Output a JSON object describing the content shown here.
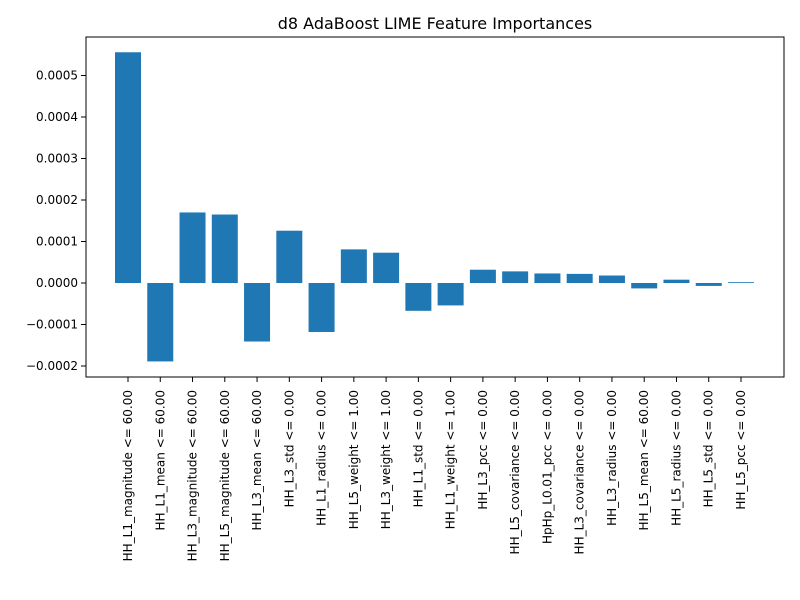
{
  "chart_data": {
    "type": "bar",
    "title": "d8 AdaBoost LIME Feature Importances",
    "xlabel": "",
    "ylabel": "",
    "ylim": [
      -0.00022,
      0.00058
    ],
    "yticks": [
      "−0.0002",
      "−0.0001",
      "0.0000",
      "0.0001",
      "0.0002",
      "0.0003",
      "0.0004",
      "0.0005"
    ],
    "ytick_values": [
      -0.0002,
      -0.0001,
      0.0,
      0.0001,
      0.0002,
      0.0003,
      0.0004,
      0.0005
    ],
    "grid": false,
    "bar_color": "#1f77b4",
    "categories": [
      "HH_L1_magnitude <= 60.00",
      "HH_L1_mean <= 60.00",
      "HH_L3_magnitude <= 60.00",
      "HH_L5_magnitude <= 60.00",
      "HH_L3_mean <= 60.00",
      "HH_L3_std <= 0.00",
      "HH_L1_radius <= 0.00",
      "HH_L5_weight <= 1.00",
      "HH_L3_weight <= 1.00",
      "HH_L1_std <= 0.00",
      "HH_L1_weight <= 1.00",
      "HH_L3_pcc <= 0.00",
      "HH_L5_covariance <= 0.00",
      "HpHp_L0.01_pcc <= 0.00",
      "HH_L3_covariance <= 0.00",
      "HH_L3_radius <= 0.00",
      "HH_L5_mean <= 60.00",
      "HH_L5_radius <= 0.00",
      "HH_L5_std <= 0.00",
      "HH_L5_pcc <= 0.00"
    ],
    "values": [
      0.000556,
      -0.000189,
      0.00017,
      0.000165,
      -0.000141,
      0.000126,
      -0.000118,
      8.1e-05,
      7.3e-05,
      -6.7e-05,
      -5.4e-05,
      3.2e-05,
      2.8e-05,
      2.3e-05,
      2.2e-05,
      1.8e-05,
      -1.3e-05,
      8e-06,
      -7e-06,
      2e-06
    ]
  }
}
